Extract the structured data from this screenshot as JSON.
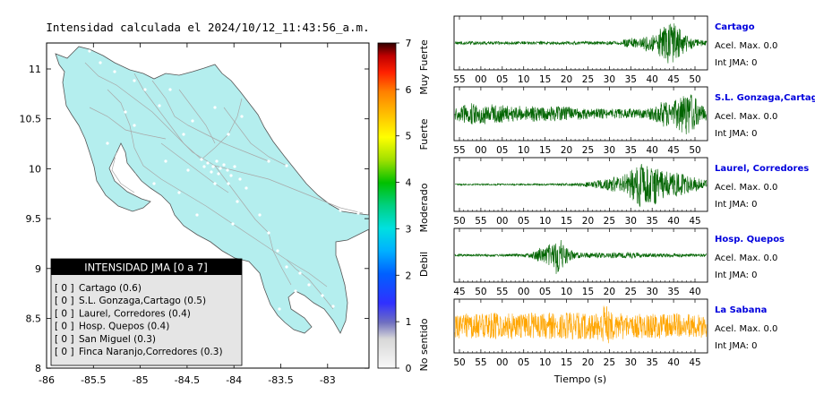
{
  "header": {
    "title": "Intensidad calculada el 2024/10/12_11:43:56_a.m."
  },
  "map": {
    "xticks": [
      "-86",
      "-85.5",
      "-85",
      "-84.5",
      "-84",
      "-83.5",
      "-83"
    ],
    "yticks": [
      "11",
      "10.5",
      "10",
      "9.5",
      "9",
      "8.5",
      "8"
    ],
    "land_color": "#b4eeee",
    "station_color": "#ffffff"
  },
  "legend": {
    "title": "INTENSIDAD JMA [0 a 7]",
    "items": [
      {
        "code": "[ 0 ]",
        "label": "Cartago (0.6)"
      },
      {
        "code": "[ 0 ]",
        "label": "S.L. Gonzaga,Cartago (0.5)"
      },
      {
        "code": "[ 0 ]",
        "label": "Laurel, Corredores (0.4)"
      },
      {
        "code": "[ 0 ]",
        "label": "Hosp. Quepos (0.4)"
      },
      {
        "code": "[ 0 ]",
        "label": "San Miguel (0.3)"
      },
      {
        "code": "[ 0 ]",
        "label": "Finca Naranjo,Corredores (0.3)"
      }
    ]
  },
  "colorbar": {
    "ticks": [
      "0",
      "1",
      "2",
      "3",
      "4",
      "5",
      "6",
      "7"
    ],
    "categories": [
      "No sentido",
      "Debil",
      "Moderado",
      "Fuerte",
      "Muy Fuerte"
    ]
  },
  "chart_data": {
    "type": "line",
    "xlabel": "Tiempo (s)",
    "traces": [
      {
        "name": "Cartago",
        "acel": "Acel. Max. 0.0",
        "jma": "Int JMA: 0",
        "color": "#006400",
        "tick_labels": [
          "55",
          "00",
          "05",
          "10",
          "15",
          "20",
          "25",
          "30",
          "35",
          "40",
          "45",
          "50"
        ],
        "amplitude": [
          0.06,
          0.06,
          0.07,
          0.06,
          0.07,
          0.06,
          0.06,
          0.07,
          0.06,
          0.06,
          0.07,
          0.06,
          0.07,
          0.06,
          0.06,
          0.07,
          0.06,
          0.07,
          0.06,
          0.06,
          0.07,
          0.06,
          0.06,
          0.07,
          0.06,
          0.07,
          0.06,
          0.06,
          0.07,
          0.06,
          0.06,
          0.07,
          0.06,
          0.07,
          0.06,
          0.07,
          0.08,
          0.08,
          0.07,
          0.08,
          0.18,
          0.22,
          0.2,
          0.15,
          0.2,
          0.4,
          0.35,
          0.3,
          0.55,
          0.7,
          0.95,
          0.85,
          0.75,
          0.55,
          0.4,
          0.3,
          0.2,
          0.15,
          0.12,
          0.1
        ]
      },
      {
        "name": "S.L. Gonzaga,Cartago",
        "acel": "Acel. Max. 0.0",
        "jma": "Int JMA: 0",
        "color": "#006400",
        "tick_labels": [
          "55",
          "00",
          "05",
          "10",
          "15",
          "20",
          "25",
          "30",
          "35",
          "40",
          "45",
          "50"
        ],
        "amplitude": [
          0.3,
          0.35,
          0.4,
          0.35,
          0.45,
          0.35,
          0.4,
          0.5,
          0.45,
          0.4,
          0.35,
          0.38,
          0.35,
          0.3,
          0.3,
          0.35,
          0.3,
          0.28,
          0.3,
          0.32,
          0.3,
          0.3,
          0.3,
          0.35,
          0.3,
          0.3,
          0.28,
          0.3,
          0.25,
          0.25,
          0.22,
          0.2,
          0.2,
          0.22,
          0.2,
          0.2,
          0.18,
          0.2,
          0.2,
          0.18,
          0.18,
          0.2,
          0.2,
          0.2,
          0.18,
          0.2,
          0.25,
          0.3,
          0.45,
          0.55,
          0.5,
          0.45,
          0.6,
          0.75,
          0.9,
          0.95,
          0.7,
          0.5,
          0.35,
          0.25
        ]
      },
      {
        "name": "Laurel, Corredores",
        "acel": "Acel. Max. 0.0",
        "jma": "Int JMA: 0",
        "color": "#006400",
        "tick_labels": [
          "50",
          "55",
          "00",
          "05",
          "10",
          "15",
          "20",
          "25",
          "30",
          "35",
          "40",
          "45"
        ],
        "amplitude": [
          0.03,
          0.03,
          0.03,
          0.03,
          0.03,
          0.03,
          0.03,
          0.03,
          0.03,
          0.03,
          0.03,
          0.03,
          0.03,
          0.03,
          0.03,
          0.03,
          0.03,
          0.03,
          0.03,
          0.04,
          0.04,
          0.04,
          0.04,
          0.04,
          0.04,
          0.05,
          0.05,
          0.05,
          0.06,
          0.07,
          0.08,
          0.1,
          0.12,
          0.15,
          0.18,
          0.2,
          0.25,
          0.3,
          0.35,
          0.3,
          0.45,
          0.55,
          0.65,
          0.95,
          0.8,
          0.75,
          0.7,
          0.85,
          0.6,
          0.55,
          0.5,
          0.45,
          0.5,
          0.45,
          0.4,
          0.35,
          0.3,
          0.25,
          0.2,
          0.18
        ]
      },
      {
        "name": "Hosp. Quepos",
        "acel": "Acel. Max. 0.0",
        "jma": "Int JMA: 0",
        "color": "#006400",
        "tick_labels": [
          "45",
          "50",
          "55",
          "00",
          "05",
          "10",
          "15",
          "20",
          "25",
          "30",
          "35",
          "40"
        ],
        "amplitude": [
          0.05,
          0.05,
          0.05,
          0.05,
          0.05,
          0.05,
          0.05,
          0.05,
          0.05,
          0.05,
          0.05,
          0.05,
          0.05,
          0.05,
          0.06,
          0.06,
          0.06,
          0.08,
          0.12,
          0.2,
          0.35,
          0.3,
          0.45,
          0.4,
          0.95,
          0.6,
          0.35,
          0.25,
          0.15,
          0.12,
          0.1,
          0.12,
          0.1,
          0.1,
          0.12,
          0.1,
          0.1,
          0.12,
          0.1,
          0.1,
          0.12,
          0.15,
          0.1,
          0.1,
          0.08,
          0.08,
          0.08,
          0.08,
          0.07,
          0.08,
          0.08,
          0.1,
          0.07,
          0.07,
          0.06,
          0.06,
          0.06,
          0.06,
          0.06,
          0.06
        ]
      },
      {
        "name": "La Sabana",
        "acel": "Acel. Max. 0.0",
        "jma": "Int JMA: 0",
        "color": "#ffa500",
        "tick_labels": [
          "50",
          "55",
          "00",
          "05",
          "10",
          "15",
          "20",
          "25",
          "30",
          "35",
          "40",
          "45"
        ],
        "amplitude": [
          0.45,
          0.5,
          0.45,
          0.55,
          0.5,
          0.5,
          0.55,
          0.45,
          0.5,
          0.55,
          0.5,
          0.5,
          0.45,
          0.55,
          0.5,
          0.45,
          0.5,
          0.5,
          0.55,
          0.5,
          0.45,
          0.5,
          0.55,
          0.5,
          0.45,
          0.5,
          0.55,
          0.6,
          0.5,
          0.55,
          0.5,
          0.6,
          0.5,
          0.55,
          0.6,
          0.95,
          0.7,
          0.55,
          0.5,
          0.55,
          0.5,
          0.5,
          0.45,
          0.5,
          0.5,
          0.45,
          0.55,
          0.5,
          0.5,
          0.5,
          0.45,
          0.5,
          0.5,
          0.45,
          0.5,
          0.5,
          0.45,
          0.5,
          0.5,
          0.5
        ]
      }
    ]
  }
}
